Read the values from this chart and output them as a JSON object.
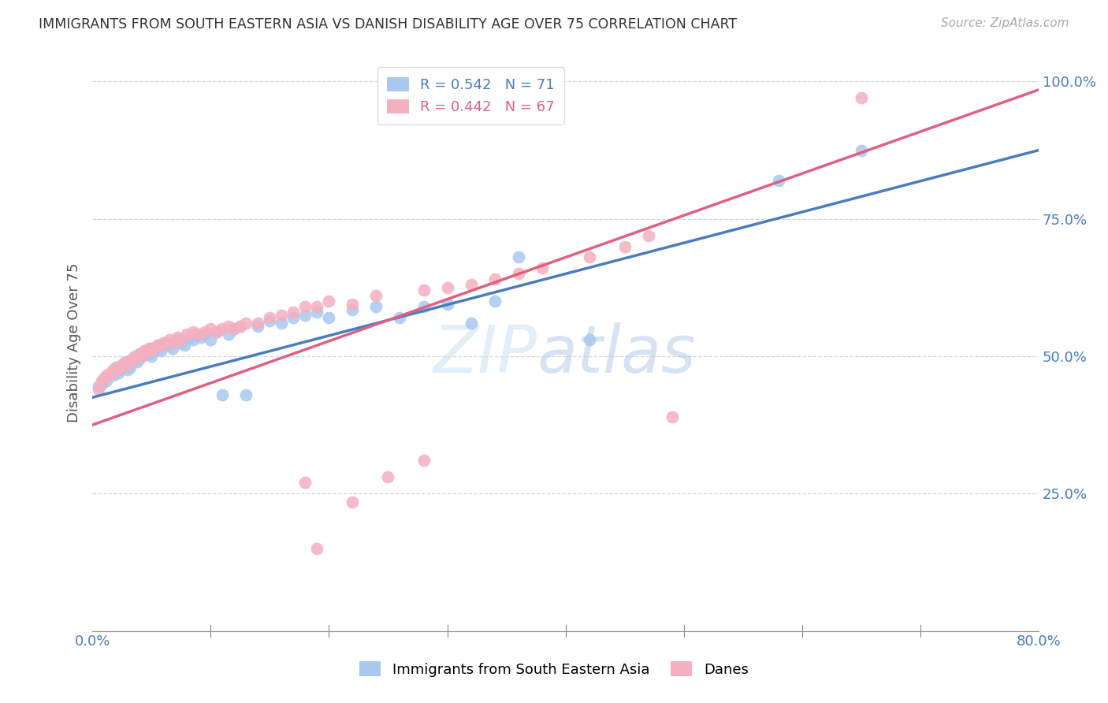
{
  "title": "IMMIGRANTS FROM SOUTH EASTERN ASIA VS DANISH DISABILITY AGE OVER 75 CORRELATION CHART",
  "source": "Source: ZipAtlas.com",
  "ylabel": "Disability Age Over 75",
  "xmin": 0.0,
  "xmax": 0.8,
  "ymin": 0.0,
  "ymax": 1.05,
  "R_blue": 0.542,
  "N_blue": 71,
  "R_pink": 0.442,
  "N_pink": 67,
  "color_blue": "#a8c8f0",
  "color_pink": "#f4b0c0",
  "line_blue": "#4a7cc0",
  "line_pink": "#e06080",
  "legend_label_blue": "Immigrants from South Eastern Asia",
  "legend_label_pink": "Danes",
  "watermark": "ZIPatlas",
  "blue_line_x0": 0.0,
  "blue_line_y0": 0.425,
  "blue_line_x1": 0.8,
  "blue_line_y1": 0.875,
  "pink_line_x0": 0.0,
  "pink_line_y0": 0.375,
  "pink_line_x1": 0.8,
  "pink_line_y1": 0.985,
  "blue_scatter_x": [
    0.005,
    0.008,
    0.01,
    0.012,
    0.014,
    0.016,
    0.018,
    0.02,
    0.02,
    0.022,
    0.024,
    0.025,
    0.026,
    0.028,
    0.03,
    0.03,
    0.032,
    0.034,
    0.035,
    0.036,
    0.038,
    0.04,
    0.04,
    0.042,
    0.044,
    0.046,
    0.048,
    0.05,
    0.05,
    0.052,
    0.054,
    0.056,
    0.058,
    0.06,
    0.062,
    0.065,
    0.068,
    0.07,
    0.072,
    0.075,
    0.078,
    0.082,
    0.085,
    0.088,
    0.092,
    0.095,
    0.1,
    0.105,
    0.11,
    0.115,
    0.12,
    0.125,
    0.13,
    0.14,
    0.15,
    0.16,
    0.17,
    0.18,
    0.19,
    0.2,
    0.22,
    0.24,
    0.26,
    0.28,
    0.3,
    0.32,
    0.34,
    0.36,
    0.42,
    0.58,
    0.65
  ],
  "blue_scatter_y": [
    0.445,
    0.45,
    0.46,
    0.455,
    0.465,
    0.47,
    0.465,
    0.475,
    0.48,
    0.47,
    0.475,
    0.48,
    0.485,
    0.48,
    0.475,
    0.49,
    0.48,
    0.49,
    0.495,
    0.5,
    0.49,
    0.495,
    0.505,
    0.5,
    0.505,
    0.51,
    0.505,
    0.5,
    0.515,
    0.51,
    0.515,
    0.52,
    0.51,
    0.52,
    0.525,
    0.52,
    0.515,
    0.525,
    0.53,
    0.525,
    0.52,
    0.535,
    0.53,
    0.54,
    0.535,
    0.54,
    0.53,
    0.545,
    0.43,
    0.54,
    0.55,
    0.555,
    0.43,
    0.555,
    0.565,
    0.56,
    0.57,
    0.575,
    0.58,
    0.57,
    0.585,
    0.59,
    0.57,
    0.59,
    0.595,
    0.56,
    0.6,
    0.68,
    0.53,
    0.82,
    0.875
  ],
  "pink_scatter_x": [
    0.005,
    0.008,
    0.01,
    0.012,
    0.014,
    0.016,
    0.018,
    0.02,
    0.022,
    0.024,
    0.026,
    0.028,
    0.03,
    0.032,
    0.034,
    0.036,
    0.038,
    0.04,
    0.042,
    0.044,
    0.046,
    0.048,
    0.05,
    0.052,
    0.055,
    0.058,
    0.06,
    0.065,
    0.068,
    0.072,
    0.075,
    0.08,
    0.085,
    0.09,
    0.095,
    0.1,
    0.105,
    0.11,
    0.115,
    0.12,
    0.125,
    0.13,
    0.14,
    0.15,
    0.16,
    0.17,
    0.18,
    0.19,
    0.2,
    0.22,
    0.24,
    0.28,
    0.3,
    0.32,
    0.34,
    0.36,
    0.38,
    0.42,
    0.45,
    0.47,
    0.18,
    0.19,
    0.22,
    0.25,
    0.28,
    0.49,
    0.65
  ],
  "pink_scatter_y": [
    0.44,
    0.455,
    0.46,
    0.465,
    0.465,
    0.47,
    0.475,
    0.475,
    0.48,
    0.48,
    0.485,
    0.49,
    0.485,
    0.49,
    0.495,
    0.495,
    0.5,
    0.505,
    0.5,
    0.51,
    0.51,
    0.515,
    0.51,
    0.515,
    0.52,
    0.52,
    0.525,
    0.53,
    0.525,
    0.535,
    0.53,
    0.54,
    0.545,
    0.54,
    0.545,
    0.55,
    0.545,
    0.55,
    0.555,
    0.55,
    0.555,
    0.56,
    0.56,
    0.57,
    0.575,
    0.58,
    0.59,
    0.59,
    0.6,
    0.595,
    0.61,
    0.62,
    0.625,
    0.63,
    0.64,
    0.65,
    0.66,
    0.68,
    0.7,
    0.72,
    0.27,
    0.15,
    0.235,
    0.28,
    0.31,
    0.39,
    0.97
  ]
}
